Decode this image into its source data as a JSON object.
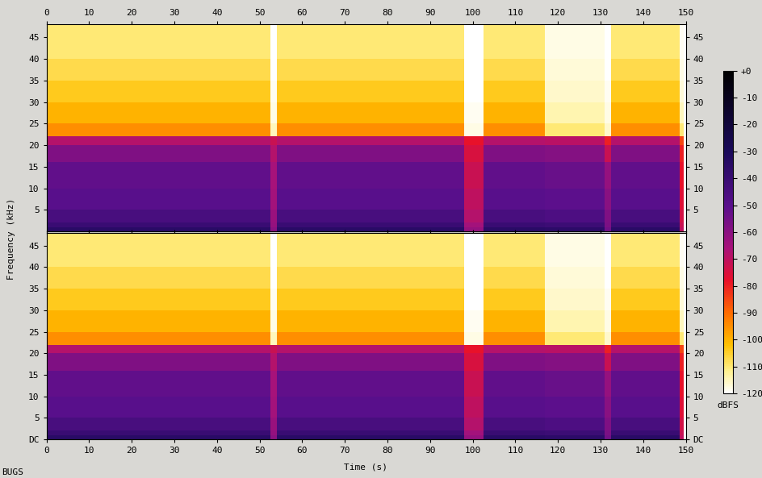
{
  "chart_data": {
    "type": "spectrogram",
    "xlabel": "Time (s)",
    "ylabel": "Frequency (kHz)",
    "annotations": [
      "BUGS"
    ],
    "xlim": [
      0,
      150
    ],
    "xticks": [
      0,
      10,
      20,
      30,
      40,
      50,
      60,
      70,
      80,
      90,
      100,
      110,
      120,
      130,
      140,
      150
    ],
    "ylim": [
      0,
      48
    ],
    "time_edges": [
      0,
      52.5,
      54,
      98,
      102.5,
      117,
      131,
      132.5,
      148.5,
      149.5,
      150
    ],
    "frequency_edges": [
      0,
      1,
      2,
      5,
      10,
      16,
      20,
      22,
      25,
      30,
      35,
      40,
      48
    ],
    "colorbar": {
      "label": "dBFS",
      "range": [
        -120,
        0
      ],
      "ticks": [
        {
          "value": 0,
          "label": "+0"
        },
        -10,
        -20,
        -30,
        -40,
        -50,
        -60,
        -70,
        -80,
        -90,
        -100,
        -110,
        -120
      ]
    },
    "channels": [
      {
        "yticks": [
          5,
          10,
          15,
          20,
          25,
          30,
          35,
          40,
          45
        ],
        "cells": [
          [
            -35,
            -60,
            -35,
            -62,
            -35,
            -36,
            -55,
            -35,
            -70,
            -120
          ],
          [
            -40,
            -62,
            -40,
            -65,
            -40,
            -41,
            -57,
            -40,
            -72,
            -120
          ],
          [
            -45,
            -63,
            -45,
            -68,
            -45,
            -46,
            -58,
            -45,
            -74,
            -120
          ],
          [
            -50,
            -65,
            -50,
            -70,
            -50,
            -51,
            -60,
            -50,
            -76,
            -120
          ],
          [
            -52,
            -66,
            -52,
            -72,
            -52,
            -53,
            -62,
            -52,
            -78,
            -120
          ],
          [
            -58,
            -68,
            -58,
            -75,
            -58,
            -59,
            -72,
            -58,
            -80,
            -120
          ],
          [
            -68,
            -72,
            -68,
            -78,
            -68,
            -69,
            -80,
            -68,
            -85,
            -120
          ],
          [
            -95,
            -115,
            -95,
            -118,
            -95,
            -110,
            -116,
            -95,
            -110,
            -120
          ],
          [
            -100,
            -118,
            -100,
            -119,
            -100,
            -114,
            -118,
            -100,
            -115,
            -120
          ],
          [
            -104,
            -119,
            -104,
            -120,
            -104,
            -116,
            -119,
            -104,
            -117,
            -120
          ],
          [
            -107,
            -120,
            -107,
            -120,
            -107,
            -117,
            -120,
            -107,
            -118,
            -120
          ],
          [
            -110,
            -120,
            -110,
            -120,
            -110,
            -118,
            -120,
            -110,
            -119,
            -120
          ]
        ]
      },
      {
        "yticks": [
          {
            "value": 0,
            "label": "DC"
          },
          5,
          10,
          15,
          20,
          25,
          30,
          35,
          40,
          45
        ],
        "cells": [
          [
            -35,
            -60,
            -35,
            -62,
            -35,
            -36,
            -55,
            -35,
            -70,
            -120
          ],
          [
            -40,
            -62,
            -40,
            -65,
            -40,
            -41,
            -57,
            -40,
            -72,
            -120
          ],
          [
            -45,
            -63,
            -45,
            -68,
            -45,
            -46,
            -58,
            -45,
            -74,
            -120
          ],
          [
            -50,
            -65,
            -50,
            -70,
            -50,
            -51,
            -60,
            -50,
            -76,
            -120
          ],
          [
            -52,
            -66,
            -52,
            -72,
            -52,
            -53,
            -62,
            -52,
            -78,
            -120
          ],
          [
            -58,
            -68,
            -58,
            -75,
            -58,
            -59,
            -72,
            -58,
            -80,
            -120
          ],
          [
            -68,
            -72,
            -68,
            -78,
            -68,
            -69,
            -80,
            -68,
            -85,
            -120
          ],
          [
            -95,
            -115,
            -95,
            -118,
            -95,
            -110,
            -116,
            -95,
            -110,
            -120
          ],
          [
            -100,
            -118,
            -100,
            -119,
            -100,
            -114,
            -118,
            -100,
            -115,
            -120
          ],
          [
            -104,
            -119,
            -104,
            -120,
            -104,
            -116,
            -119,
            -104,
            -117,
            -120
          ],
          [
            -107,
            -120,
            -107,
            -120,
            -107,
            -117,
            -120,
            -107,
            -118,
            -120
          ],
          [
            -110,
            -120,
            -110,
            -120,
            -110,
            -118,
            -120,
            -110,
            -119,
            -120
          ]
        ]
      }
    ]
  }
}
